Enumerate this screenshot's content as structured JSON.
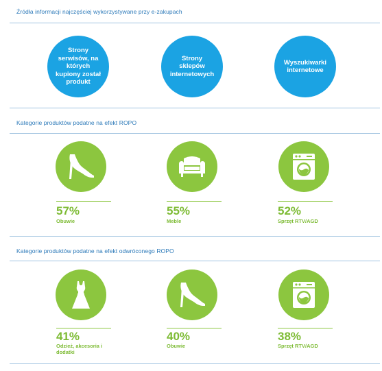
{
  "sections": [
    {
      "title": "Źródła informacji najczęściej wykorzystywane przy e-zakupach",
      "sources": [
        "Strony serwisów, na których kupiony został produkt",
        "Strony sklepów internetowych",
        "Wyszukiwarki internetowe"
      ]
    },
    {
      "title": "Kategorie produktów podatne na efekt ROPO",
      "items": [
        {
          "percent": "57%",
          "label": "Obuwie",
          "icon": "high-heel-shoe-icon"
        },
        {
          "percent": "55%",
          "label": "Meble",
          "icon": "armchair-icon"
        },
        {
          "percent": "52%",
          "label": "Sprzęt RTV/AGD",
          "icon": "washing-machine-icon"
        }
      ]
    },
    {
      "title": "Kategorie produktów podatne na efekt odwróconego ROPO",
      "items": [
        {
          "percent": "41%",
          "label": "Odzież, akcesoria i dodatki",
          "icon": "dress-icon"
        },
        {
          "percent": "40%",
          "label": "Obuwie",
          "icon": "high-heel-shoe-icon"
        },
        {
          "percent": "38%",
          "label": "Sprzęt RTV/AGD",
          "icon": "washing-machine-icon"
        }
      ]
    }
  ],
  "colors": {
    "blue": "#1ba3e3",
    "green": "#8cc63f",
    "title": "#2a78b8"
  }
}
